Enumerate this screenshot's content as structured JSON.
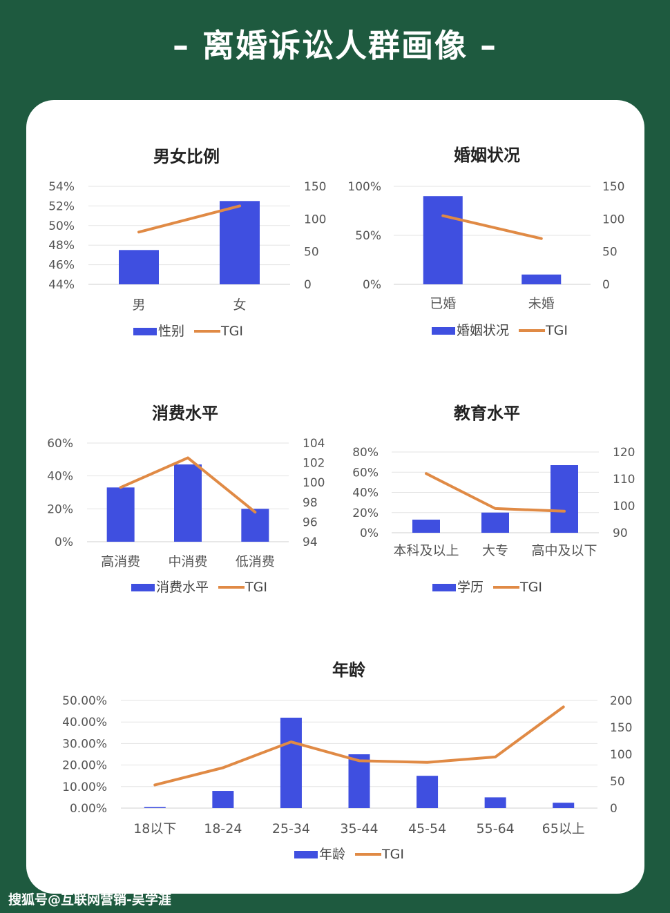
{
  "page_title": "– 离婚诉讼人群画像 –",
  "watermark": "搜狐号@互联网营销-吴学涯",
  "colors": {
    "background": "#1e5a3f",
    "bar": "#3f4fe0",
    "line": "#e08a45"
  },
  "chart_data": [
    {
      "type": "bar+line",
      "title": "男女比例",
      "categories": [
        "男",
        "女"
      ],
      "bar_series": {
        "name": "性别",
        "values": [
          47.5,
          52.5
        ]
      },
      "line_series": {
        "name": "TGI",
        "values": [
          80,
          120
        ]
      },
      "y_left": {
        "min": 44,
        "max": 54,
        "ticks": [
          "54%",
          "52%",
          "50%",
          "48%",
          "46%",
          "44%"
        ]
      },
      "y_right": {
        "min": 0,
        "max": 150,
        "ticks": [
          "150",
          "100",
          "50",
          "0"
        ]
      }
    },
    {
      "type": "bar+line",
      "title": "婚姻状况",
      "categories": [
        "已婚",
        "未婚"
      ],
      "bar_series": {
        "name": "婚姻状况",
        "values": [
          90,
          10
        ]
      },
      "line_series": {
        "name": "TGI",
        "values": [
          105,
          70
        ]
      },
      "y_left": {
        "min": 0,
        "max": 100,
        "ticks": [
          "100%",
          "50%",
          "0%"
        ]
      },
      "y_right": {
        "min": 0,
        "max": 150,
        "ticks": [
          "150",
          "100",
          "50",
          "0"
        ]
      }
    },
    {
      "type": "bar+line",
      "title": "消费水平",
      "categories": [
        "高消费",
        "中消费",
        "低消费"
      ],
      "bar_series": {
        "name": "消费水平",
        "values": [
          33,
          47,
          20
        ]
      },
      "line_series": {
        "name": "TGI",
        "values": [
          99.5,
          102.5,
          97
        ]
      },
      "y_left": {
        "min": 0,
        "max": 60,
        "ticks": [
          "60%",
          "40%",
          "20%",
          "0%"
        ]
      },
      "y_right": {
        "min": 94,
        "max": 104,
        "ticks": [
          "104",
          "102",
          "100",
          "98",
          "96",
          "94"
        ]
      }
    },
    {
      "type": "bar+line",
      "title": "教育水平",
      "categories": [
        "本科及以上",
        "大专",
        "高中及以下"
      ],
      "bar_series": {
        "name": "学历",
        "values": [
          13,
          20,
          67
        ]
      },
      "line_series": {
        "name": "TGI",
        "values": [
          112,
          99,
          98
        ]
      },
      "y_left": {
        "min": 0,
        "max": 80,
        "ticks": [
          "80%",
          "60%",
          "40%",
          "20%",
          "0%"
        ]
      },
      "y_right": {
        "min": 90,
        "max": 120,
        "ticks": [
          "120",
          "110",
          "100",
          "90"
        ]
      }
    },
    {
      "type": "bar+line",
      "title": "年龄",
      "categories": [
        "18以下",
        "18-24",
        "25-34",
        "35-44",
        "45-54",
        "55-64",
        "65以上"
      ],
      "bar_series": {
        "name": "年龄",
        "values": [
          0.5,
          8,
          42,
          25,
          15,
          5,
          2.5
        ]
      },
      "line_series": {
        "name": "TGI",
        "values": [
          43,
          75,
          123,
          88,
          85,
          95,
          188
        ]
      },
      "y_left": {
        "min": 0,
        "max": 50,
        "ticks": [
          "50.00%",
          "40.00%",
          "30.00%",
          "20.00%",
          "10.00%",
          "0.00%"
        ]
      },
      "y_right": {
        "min": 0,
        "max": 200,
        "ticks": [
          "200",
          "150",
          "100",
          "50",
          "0"
        ]
      }
    }
  ]
}
